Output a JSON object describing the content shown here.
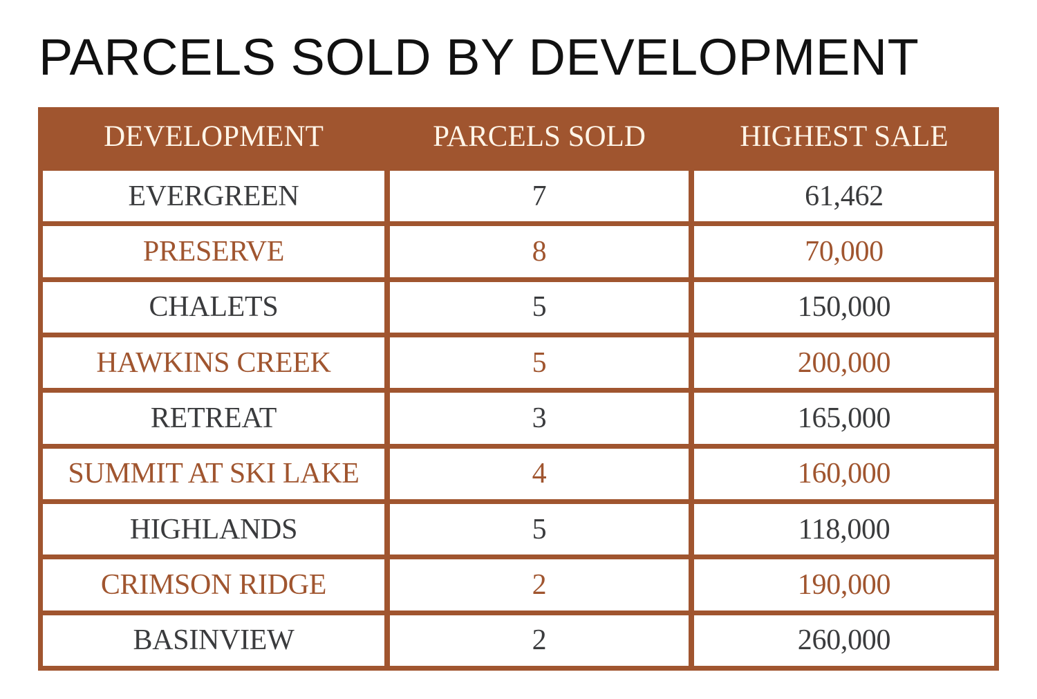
{
  "title": "PARCELS SOLD BY DEVELOPMENT",
  "colors": {
    "accent": "#A0552F",
    "text": "#3a3b3d",
    "header_text": "#FFF5E8"
  },
  "chart_data": {
    "type": "table",
    "title": "PARCELS SOLD BY DEVELOPMENT",
    "columns": [
      "DEVELOPMENT",
      "PARCELS SOLD",
      "HIGHEST SALE"
    ],
    "rows": [
      [
        "EVERGREEN",
        "7",
        "61,462"
      ],
      [
        "PRESERVE",
        "8",
        "70,000"
      ],
      [
        "CHALETS",
        "5",
        "150,000"
      ],
      [
        "HAWKINS CREEK",
        "5",
        "200,000"
      ],
      [
        "RETREAT",
        "3",
        "165,000"
      ],
      [
        "SUMMIT AT SKI LAKE",
        "4",
        "160,000"
      ],
      [
        "HIGHLANDS",
        "5",
        "118,000"
      ],
      [
        "CRIMSON RIDGE",
        "2",
        "190,000"
      ],
      [
        "BASINVIEW",
        "2",
        "260,000"
      ]
    ]
  }
}
